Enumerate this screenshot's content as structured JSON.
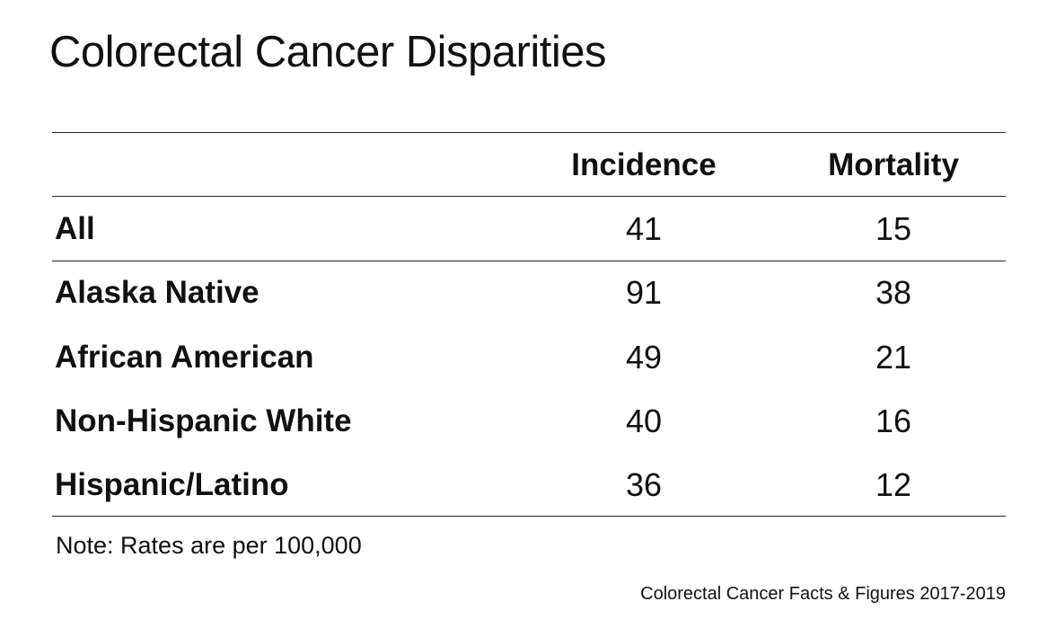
{
  "header": {
    "title": "Colorectal Cancer Disparities"
  },
  "table": {
    "columns": [
      "Incidence",
      "Mortality"
    ],
    "rows": [
      [
        "All",
        41,
        15
      ],
      [
        "Alaska Native",
        91,
        38
      ],
      [
        "African American",
        49,
        21
      ],
      [
        "Non-Hispanic White",
        40,
        16
      ],
      [
        "Hispanic/Latino",
        36,
        12
      ]
    ]
  },
  "footer": {
    "note": "Note: Rates are per 100,000",
    "source": "Colorectal Cancer Facts & Figures 2017-2019"
  }
}
